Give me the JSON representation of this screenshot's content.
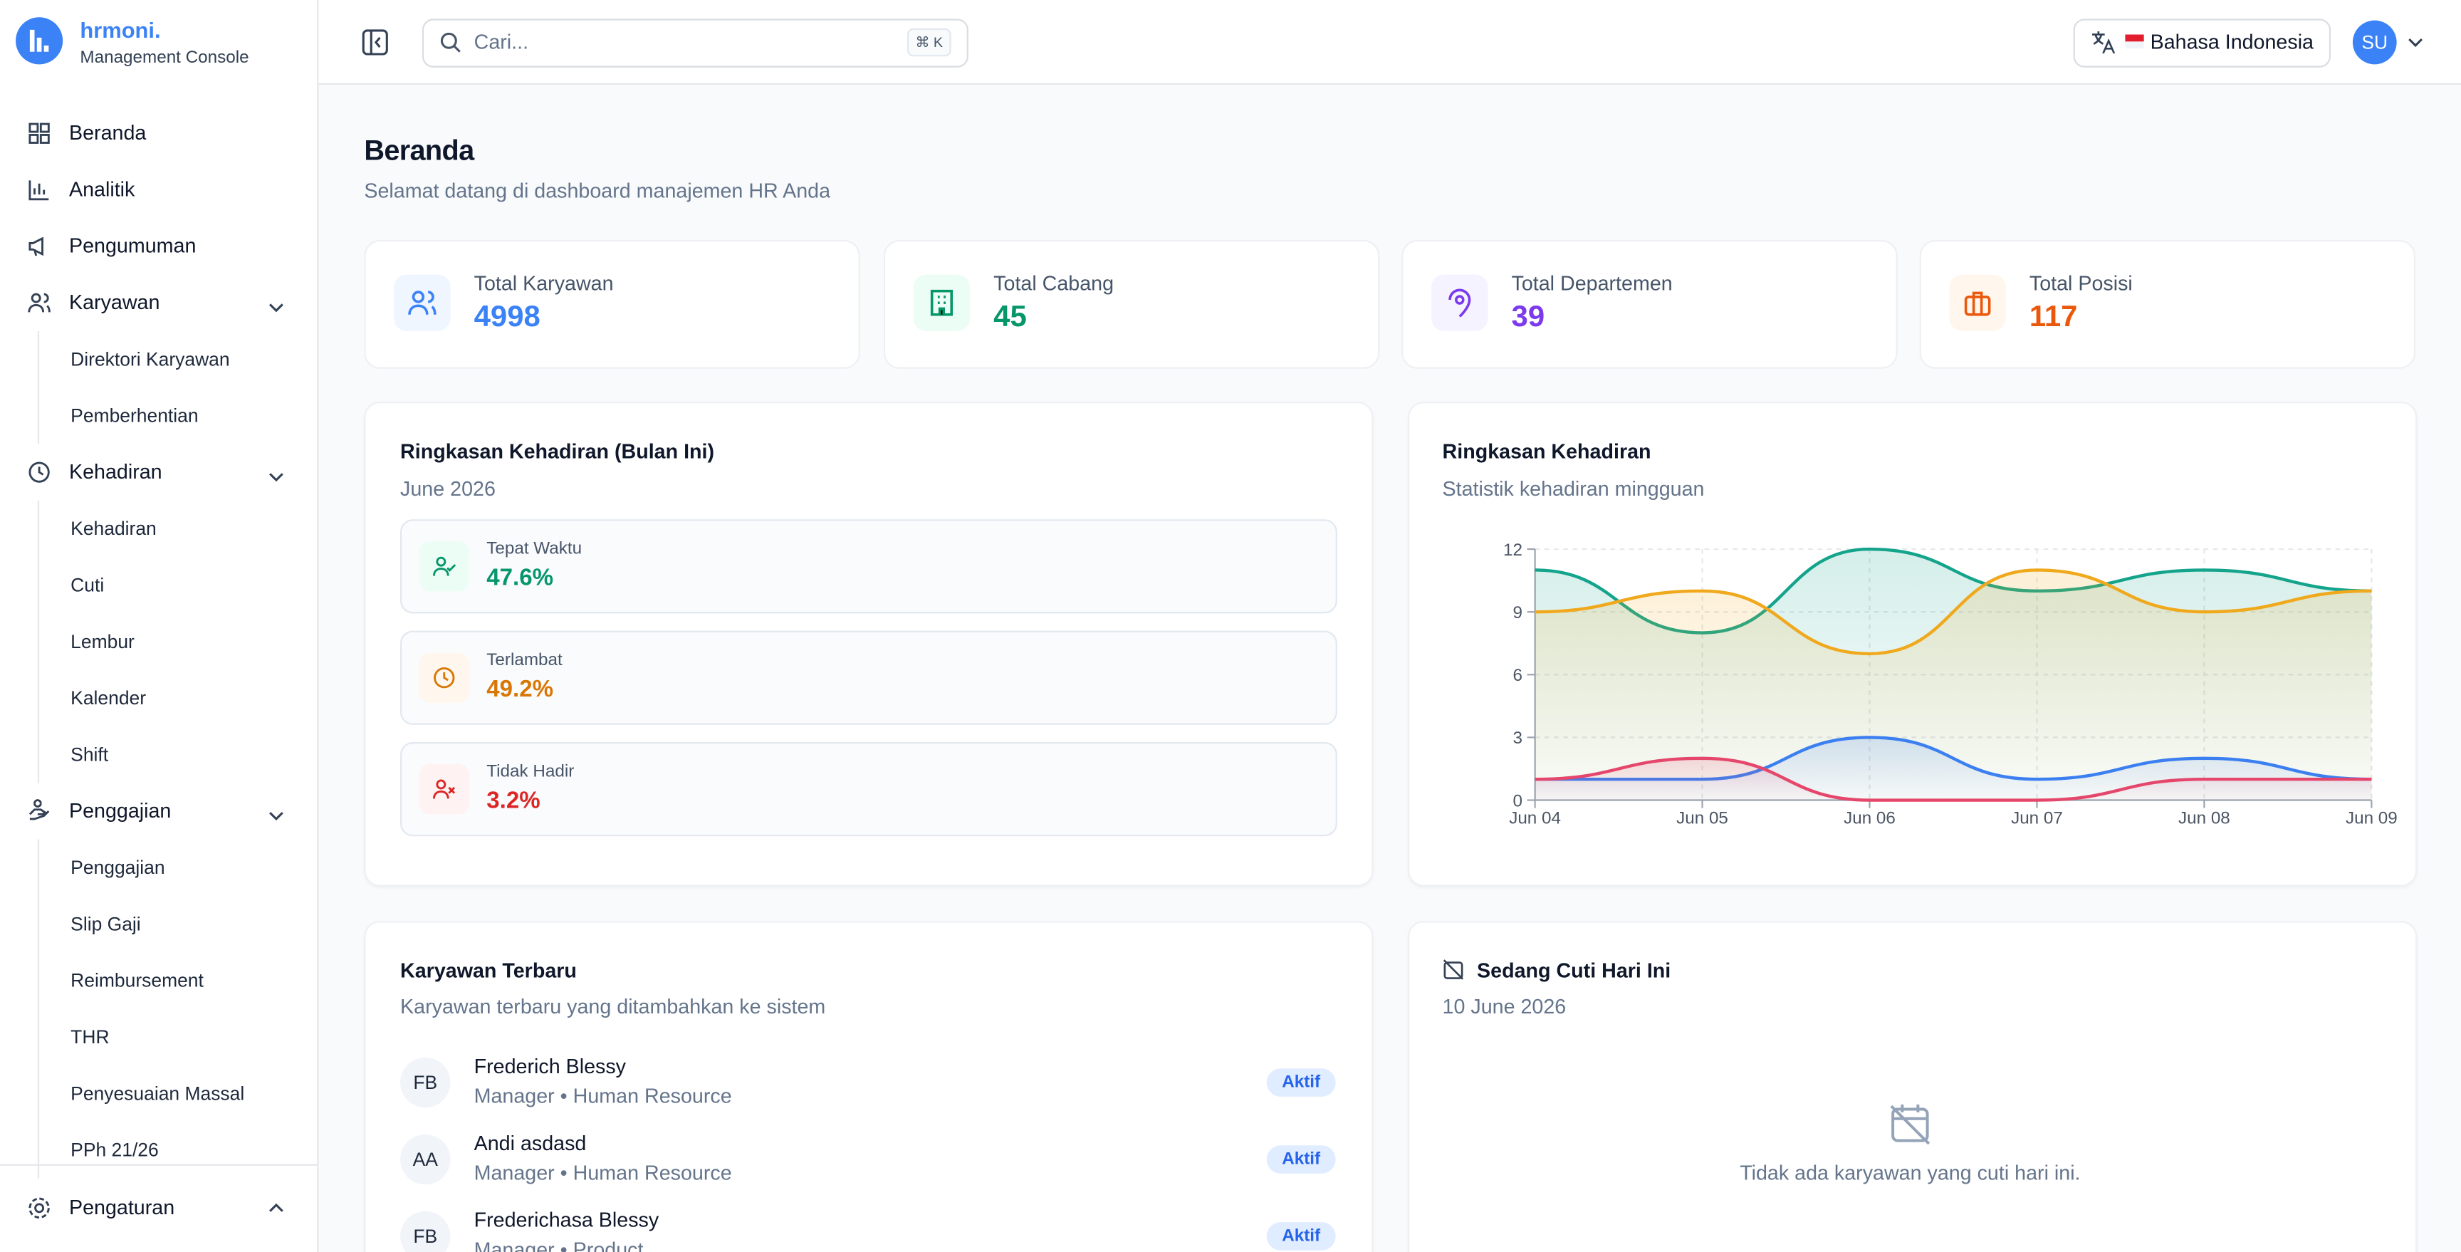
{
  "brand": {
    "name": "hrmoni.",
    "subtitle": "Management Console"
  },
  "sidebar": {
    "items": [
      {
        "label": "Beranda"
      },
      {
        "label": "Analitik"
      },
      {
        "label": "Pengumuman"
      },
      {
        "label": "Karyawan",
        "children": [
          "Direktori Karyawan",
          "Pemberhentian"
        ]
      },
      {
        "label": "Kehadiran",
        "children": [
          "Kehadiran",
          "Cuti",
          "Lembur",
          "Kalender",
          "Shift"
        ]
      },
      {
        "label": "Penggajian",
        "children": [
          "Penggajian",
          "Slip Gaji",
          "Reimbursement",
          "THR",
          "Penyesuaian Massal",
          "PPh 21/26"
        ]
      }
    ],
    "footer_item": "Pengaturan"
  },
  "topbar": {
    "search_placeholder": "Cari...",
    "shortcut": "⌘ K",
    "language": "Bahasa Indonesia",
    "avatar": "SU"
  },
  "page": {
    "title": "Beranda",
    "subtitle": "Selamat datang di dashboard manajemen HR Anda"
  },
  "stats": [
    {
      "label": "Total Karyawan",
      "value": 4998
    },
    {
      "label": "Total Cabang",
      "value": 45
    },
    {
      "label": "Total Departemen",
      "value": 39
    },
    {
      "label": "Total Posisi",
      "value": 117
    }
  ],
  "attendance_summary": {
    "title": "Ringkasan Kehadiran (Bulan Ini)",
    "period": "June 2026",
    "items": [
      {
        "label": "Tepat Waktu",
        "value": "47.6%"
      },
      {
        "label": "Terlambat",
        "value": "49.2%"
      },
      {
        "label": "Tidak Hadir",
        "value": "3.2%"
      }
    ]
  },
  "chart_data": {
    "type": "line",
    "title": "Ringkasan Kehadiran",
    "subtitle": "Statistik kehadiran mingguan",
    "categories": [
      "Jun 04",
      "Jun 05",
      "Jun 06",
      "Jun 07",
      "Jun 08",
      "Jun 09"
    ],
    "series": [
      {
        "color": "#14a38b",
        "values": [
          11,
          8,
          12,
          10,
          11,
          10
        ]
      },
      {
        "color": "#f0a81c",
        "values": [
          9,
          10,
          7,
          11,
          9,
          10
        ]
      },
      {
        "color": "#3b7ff0",
        "values": [
          1,
          1,
          3,
          1,
          2,
          1
        ]
      },
      {
        "color": "#e5476c",
        "values": [
          1,
          2,
          0,
          0,
          1,
          1
        ]
      }
    ],
    "ylim": [
      0,
      12
    ],
    "yticks": [
      0,
      3,
      6,
      9,
      12
    ],
    "grid": true
  },
  "recent_employees": {
    "title": "Karyawan Terbaru",
    "subtitle": "Karyawan terbaru yang ditambahkan ke sistem",
    "rows": [
      {
        "initials": "FB",
        "name": "Frederich Blessy",
        "role": "Manager • Human Resource",
        "status": "Aktif"
      },
      {
        "initials": "AA",
        "name": "Andi asdasd",
        "role": "Manager • Human Resource",
        "status": "Aktif"
      },
      {
        "initials": "FB",
        "name": "Frederichasa Blessy",
        "role": "Manager • Product",
        "status": "Aktif"
      }
    ]
  },
  "leave_today": {
    "title": "Sedang Cuti Hari Ini",
    "date": "10 June 2026",
    "empty_message": "Tidak ada karyawan yang cuti hari ini."
  }
}
